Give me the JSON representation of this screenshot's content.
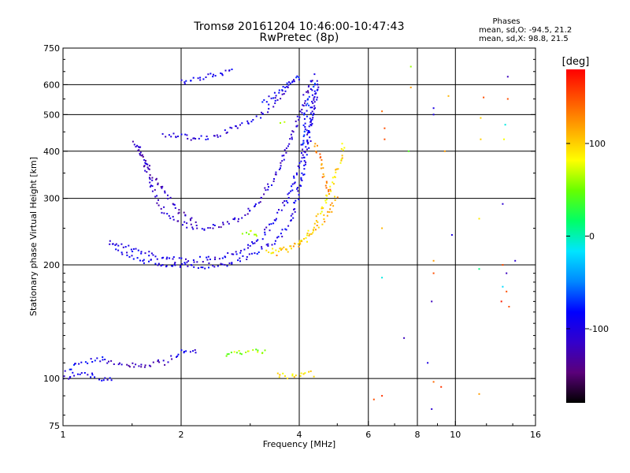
{
  "chart_data": {
    "type": "scatter",
    "title": "Tromsø 20161204 10:46:00-10:47:43",
    "subtitle": "RwPretec (8p)",
    "xlabel": "Frequency [MHz]",
    "ylabel": "Stationary phase Virtual Height [km]",
    "x_scale": "log",
    "y_scale": "log",
    "xlim": [
      1,
      16
    ],
    "ylim": [
      75,
      750
    ],
    "x_ticks": [
      {
        "value": 1,
        "label": "1"
      },
      {
        "value": 2,
        "label": "2"
      },
      {
        "value": 4,
        "label": "4"
      },
      {
        "value": 6,
        "label": "6"
      },
      {
        "value": 8,
        "label": "8"
      },
      {
        "value": 10,
        "label": "10"
      },
      {
        "value": 16,
        "label": "16"
      }
    ],
    "x_grid": [
      2,
      4,
      6,
      8,
      10
    ],
    "y_ticks": [
      {
        "value": 75,
        "label": "75"
      },
      {
        "value": 100,
        "label": "100"
      },
      {
        "value": 200,
        "label": "200"
      },
      {
        "value": 300,
        "label": "300"
      },
      {
        "value": 400,
        "label": "400"
      },
      {
        "value": 500,
        "label": "500"
      },
      {
        "value": 600,
        "label": "600"
      },
      {
        "value": 750,
        "label": "750"
      }
    ],
    "y_grid": [
      100,
      200,
      300,
      400,
      500,
      600
    ],
    "grid": true,
    "stats": {
      "title": "Phases",
      "o_line": "mean, sd,O: -94.5, 21.2",
      "x_line": "mean, sd,X:  98.8, 21.5"
    },
    "colorbar": {
      "label": "[deg]",
      "range": [
        -180,
        180
      ],
      "ticks": [
        {
          "value": 100,
          "label": "100"
        },
        {
          "value": 0,
          "label": "0"
        },
        {
          "value": -100,
          "label": "-100"
        }
      ],
      "colormap": [
        "#000000",
        "#5a007a",
        "#3300cc",
        "#0000ff",
        "#0088ff",
        "#00e5ff",
        "#00ff66",
        "#66ff00",
        "#ffff00",
        "#ffaa00",
        "#ff5500",
        "#ff0000"
      ]
    },
    "traces": [
      {
        "name": "",
        "phase": -100,
        "points": [
          [
            1.33,
            230
          ],
          [
            1.4,
            225
          ],
          [
            1.5,
            220
          ],
          [
            1.6,
            215
          ],
          [
            1.75,
            210
          ],
          [
            1.9,
            207
          ],
          [
            2.05,
            205
          ],
          [
            2.3,
            207
          ],
          [
            2.6,
            212
          ],
          [
            2.9,
            220
          ],
          [
            3.1,
            230
          ],
          [
            3.3,
            245
          ],
          [
            3.5,
            265
          ],
          [
            3.7,
            295
          ],
          [
            3.9,
            340
          ],
          [
            4.1,
            400
          ],
          [
            4.25,
            470
          ],
          [
            4.35,
            540
          ],
          [
            4.45,
            620
          ]
        ]
      },
      {
        "name": "",
        "phase": -95,
        "points": [
          [
            1.33,
            228
          ],
          [
            1.45,
            215
          ],
          [
            1.6,
            205
          ],
          [
            1.8,
            200
          ],
          [
            2.0,
            198
          ],
          [
            2.2,
            198
          ],
          [
            2.5,
            200
          ],
          [
            2.8,
            205
          ],
          [
            3.0,
            212
          ],
          [
            3.2,
            220
          ],
          [
            3.4,
            228
          ],
          [
            3.6,
            240
          ],
          [
            3.8,
            262
          ],
          [
            3.95,
            300
          ],
          [
            4.1,
            360
          ],
          [
            4.25,
            430
          ],
          [
            4.35,
            520
          ],
          [
            4.45,
            600
          ]
        ]
      },
      {
        "name": "",
        "phase": -110,
        "points": [
          [
            1.55,
            420
          ],
          [
            1.6,
            380
          ],
          [
            1.65,
            340
          ],
          [
            1.72,
            300
          ],
          [
            1.82,
            275
          ],
          [
            1.95,
            260
          ],
          [
            2.1,
            252
          ],
          [
            2.3,
            250
          ],
          [
            2.55,
            255
          ],
          [
            2.8,
            265
          ],
          [
            3.0,
            280
          ],
          [
            3.2,
            300
          ],
          [
            3.4,
            330
          ],
          [
            3.6,
            370
          ],
          [
            3.8,
            430
          ],
          [
            4.0,
            500
          ],
          [
            4.2,
            580
          ],
          [
            4.35,
            640
          ]
        ]
      },
      {
        "name": "",
        "phase": -105,
        "points": [
          [
            1.8,
            440
          ],
          [
            2.0,
            440
          ],
          [
            2.2,
            430
          ],
          [
            2.4,
            435
          ],
          [
            2.6,
            450
          ],
          [
            2.8,
            465
          ],
          [
            3.0,
            480
          ],
          [
            3.2,
            500
          ],
          [
            3.4,
            530
          ],
          [
            3.6,
            560
          ],
          [
            3.8,
            600
          ],
          [
            4.0,
            630
          ]
        ]
      },
      {
        "name": "",
        "phase": -120,
        "points": [
          [
            1.52,
            420
          ],
          [
            1.58,
            395
          ],
          [
            1.7,
            340
          ],
          [
            1.85,
            300
          ],
          [
            2.0,
            275
          ],
          [
            2.2,
            260
          ]
        ]
      },
      {
        "name": "",
        "phase": -95,
        "points": [
          [
            2.0,
            610
          ],
          [
            2.1,
            615
          ],
          [
            2.6,
            650
          ],
          [
            2.75,
            660
          ]
        ]
      },
      {
        "name": "",
        "phase": -90,
        "points": [
          [
            3.2,
            540
          ],
          [
            3.4,
            560
          ],
          [
            3.6,
            580
          ],
          [
            3.8,
            600
          ],
          [
            4.0,
            640
          ]
        ]
      },
      {
        "name": "",
        "phase": -80,
        "points": [
          [
            4.05,
            410
          ],
          [
            4.1,
            450
          ],
          [
            4.15,
            500
          ],
          [
            4.2,
            540
          ],
          [
            4.3,
            580
          ],
          [
            4.4,
            620
          ]
        ]
      },
      {
        "name": "",
        "phase": 95,
        "points": [
          [
            3.3,
            215
          ],
          [
            3.6,
            220
          ],
          [
            3.9,
            225
          ],
          [
            4.1,
            235
          ],
          [
            4.3,
            250
          ],
          [
            4.5,
            270
          ],
          [
            4.7,
            300
          ],
          [
            4.9,
            340
          ],
          [
            5.1,
            380
          ],
          [
            5.2,
            420
          ]
        ]
      },
      {
        "name": "",
        "phase": 110,
        "points": [
          [
            3.4,
            212
          ],
          [
            3.7,
            218
          ],
          [
            4.0,
            228
          ],
          [
            4.3,
            240
          ],
          [
            4.6,
            260
          ],
          [
            4.8,
            280
          ],
          [
            5.0,
            310
          ]
        ]
      },
      {
        "name": "",
        "phase": 130,
        "points": [
          [
            4.4,
            420
          ],
          [
            4.5,
            380
          ],
          [
            4.6,
            350
          ],
          [
            4.7,
            330
          ],
          [
            4.8,
            300
          ]
        ]
      },
      {
        "name": "",
        "phase": 60,
        "points": [
          [
            2.9,
            240
          ],
          [
            3.0,
            245
          ],
          [
            3.1,
            240
          ],
          [
            3.2,
            238
          ]
        ]
      },
      {
        "name": "",
        "phase": 50,
        "points": [
          [
            3.6,
            470
          ],
          [
            3.7,
            475
          ]
        ]
      },
      {
        "name": "",
        "phase": -120,
        "points": [
          [
            1.3,
            110
          ],
          [
            1.4,
            109
          ],
          [
            1.5,
            108
          ],
          [
            1.6,
            108
          ],
          [
            1.7,
            110
          ],
          [
            1.8,
            110
          ],
          [
            1.9,
            112
          ]
        ]
      },
      {
        "name": "",
        "phase": -100,
        "points": [
          [
            1.0,
            100
          ],
          [
            1.05,
            102
          ],
          [
            1.1,
            104
          ],
          [
            1.15,
            103
          ],
          [
            1.2,
            101
          ],
          [
            1.25,
            100
          ],
          [
            1.3,
            99
          ],
          [
            1.35,
            100
          ]
        ]
      },
      {
        "name": "",
        "phase": -90,
        "points": [
          [
            1.02,
            106
          ],
          [
            1.1,
            110
          ],
          [
            1.2,
            112
          ],
          [
            1.3,
            114
          ]
        ]
      },
      {
        "name": "",
        "phase": -100,
        "points": [
          [
            1.9,
            115
          ],
          [
            2.0,
            117
          ],
          [
            2.1,
            118
          ],
          [
            2.2,
            116
          ]
        ]
      },
      {
        "name": "",
        "phase": 60,
        "points": [
          [
            2.6,
            116
          ],
          [
            2.7,
            117
          ],
          [
            3.0,
            118
          ],
          [
            3.1,
            119
          ],
          [
            3.2,
            117
          ],
          [
            3.3,
            119
          ]
        ]
      },
      {
        "name": "",
        "phase": 95,
        "points": [
          [
            3.5,
            103
          ],
          [
            3.6,
            102
          ],
          [
            3.7,
            101
          ],
          [
            4.3,
            103
          ],
          [
            4.4,
            102
          ]
        ]
      }
    ],
    "scatter_points": [
      {
        "x": 6.2,
        "y": 88,
        "phase": 150
      },
      {
        "x": 6.5,
        "y": 90,
        "phase": 160
      },
      {
        "x": 6.5,
        "y": 185,
        "phase": -10
      },
      {
        "x": 6.5,
        "y": 250,
        "phase": 110
      },
      {
        "x": 6.6,
        "y": 430,
        "phase": 150
      },
      {
        "x": 6.6,
        "y": 460,
        "phase": 150
      },
      {
        "x": 6.5,
        "y": 510,
        "phase": 140
      },
      {
        "x": 7.4,
        "y": 128,
        "phase": -120
      },
      {
        "x": 7.6,
        "y": 400,
        "phase": 40
      },
      {
        "x": 7.7,
        "y": 590,
        "phase": 120
      },
      {
        "x": 7.7,
        "y": 670,
        "phase": 60
      },
      {
        "x": 8.5,
        "y": 110,
        "phase": -100
      },
      {
        "x": 8.7,
        "y": 83,
        "phase": -110
      },
      {
        "x": 8.8,
        "y": 98,
        "phase": 140
      },
      {
        "x": 8.7,
        "y": 160,
        "phase": -120
      },
      {
        "x": 8.8,
        "y": 190,
        "phase": 150
      },
      {
        "x": 8.8,
        "y": 205,
        "phase": 120
      },
      {
        "x": 8.8,
        "y": 500,
        "phase": -100
      },
      {
        "x": 8.8,
        "y": 520,
        "phase": -100
      },
      {
        "x": 9.4,
        "y": 400,
        "phase": 120
      },
      {
        "x": 9.2,
        "y": 95,
        "phase": 160
      },
      {
        "x": 9.6,
        "y": 560,
        "phase": 110
      },
      {
        "x": 9.8,
        "y": 240,
        "phase": -100
      },
      {
        "x": 11.5,
        "y": 91,
        "phase": 120
      },
      {
        "x": 11.5,
        "y": 195,
        "phase": 10
      },
      {
        "x": 11.5,
        "y": 265,
        "phase": 90
      },
      {
        "x": 11.6,
        "y": 430,
        "phase": 100
      },
      {
        "x": 11.6,
        "y": 490,
        "phase": 100
      },
      {
        "x": 11.8,
        "y": 555,
        "phase": 150
      },
      {
        "x": 13.6,
        "y": 630,
        "phase": -120
      },
      {
        "x": 13.6,
        "y": 550,
        "phase": 150
      },
      {
        "x": 13.3,
        "y": 430,
        "phase": 80
      },
      {
        "x": 13.4,
        "y": 470,
        "phase": -10
      },
      {
        "x": 13.2,
        "y": 290,
        "phase": -110
      },
      {
        "x": 13.2,
        "y": 200,
        "phase": 150
      },
      {
        "x": 13.2,
        "y": 175,
        "phase": -20
      },
      {
        "x": 13.5,
        "y": 170,
        "phase": 150
      },
      {
        "x": 13.1,
        "y": 160,
        "phase": 170
      },
      {
        "x": 13.7,
        "y": 155,
        "phase": 150
      },
      {
        "x": 13.5,
        "y": 190,
        "phase": -120
      },
      {
        "x": 14.2,
        "y": 205,
        "phase": -110
      }
    ]
  }
}
